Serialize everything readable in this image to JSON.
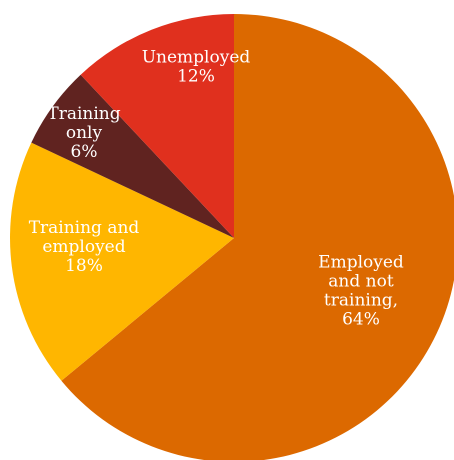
{
  "chart_data": {
    "type": "pie",
    "start_angle_deg": 0,
    "direction": "clockwise",
    "slices": [
      {
        "label_lines": [
          "Employed",
          "and not",
          "training,",
          "64%"
        ],
        "category": "Employed and not training",
        "value": 64,
        "color": "#dc6900"
      },
      {
        "label_lines": [
          "Training and",
          "employed",
          "18%"
        ],
        "category": "Training and employed",
        "value": 18,
        "color": "#ffb600"
      },
      {
        "label_lines": [
          "Training",
          "only",
          "6%"
        ],
        "category": "Training only",
        "value": 6,
        "color": "#602320"
      },
      {
        "label_lines": [
          "Unemployed",
          "12%"
        ],
        "category": "Unemployed",
        "value": 12,
        "color": "#e0301e"
      }
    ]
  }
}
